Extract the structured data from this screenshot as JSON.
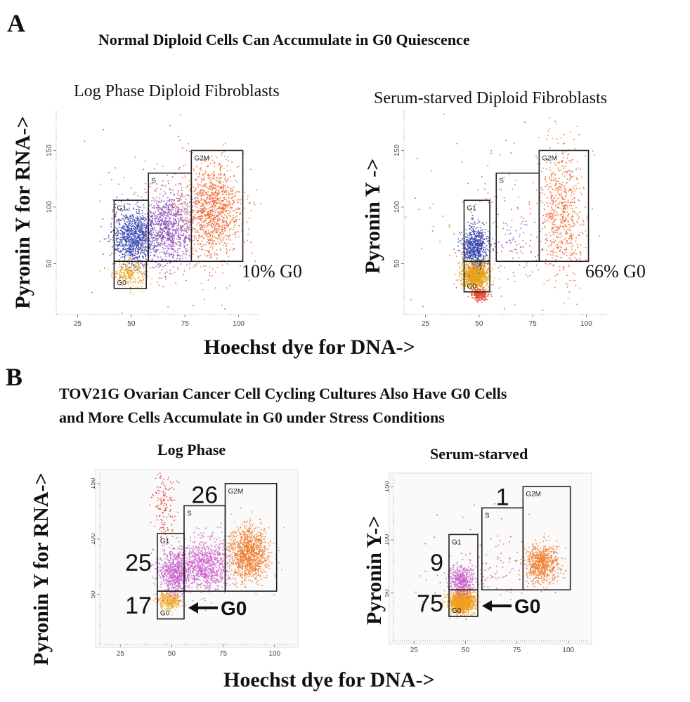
{
  "panel_a": {
    "letter": "A",
    "title": "Normal Diploid Cells Can Accumulate in G0 Quiescence",
    "ylabel_left": "Pyronin Y for RNA->",
    "ylabel_right": "Pyronin Y ->",
    "xlabel": "Hoechst dye for DNA->"
  },
  "panel_b": {
    "letter": "B",
    "title_line1": "TOV21G Ovarian Cancer Cell Cycling Cultures Also Have G0 Cells",
    "title_line2": "and More Cells Accumulate in G0 under Stress Conditions",
    "ylabel_left": "Pyronin Y for RNA->",
    "ylabel_right": "Pyronin Y->",
    "xlabel": "Hoechst dye for DNA->"
  },
  "chart_data": [
    {
      "id": "a-log",
      "type": "scatter",
      "title": "Log Phase Diploid Fibroblasts",
      "xlabel": "Hoechst dye for DNA->",
      "ylabel": "Pyronin Y for RNA->",
      "xticks": [
        "25",
        "50",
        "75",
        "100"
      ],
      "yticks": [
        "50",
        "100",
        "150"
      ],
      "xlim": [
        15,
        110
      ],
      "ylim": [
        5,
        185
      ],
      "gates": [
        {
          "label": "G0",
          "x": [
            42,
            57
          ],
          "y": [
            28,
            52
          ]
        },
        {
          "label": "G1",
          "x": [
            42,
            58
          ],
          "y": [
            52,
            106
          ]
        },
        {
          "label": "S",
          "x": [
            58,
            78
          ],
          "y": [
            52,
            130
          ]
        },
        {
          "label": "G2M",
          "x": [
            78,
            102
          ],
          "y": [
            52,
            150
          ]
        }
      ],
      "annotation": "10% G0",
      "populations": [
        {
          "name": "G0",
          "color": "#e9a21f",
          "count": 260,
          "cx": 49,
          "cy": 42,
          "sx": 4,
          "sy": 6
        },
        {
          "name": "G1",
          "color": "#3245b0",
          "count": 950,
          "cx": 51,
          "cy": 74,
          "sx": 5,
          "sy": 12
        },
        {
          "name": "S",
          "color": "#8a4ec0",
          "count": 900,
          "cx": 67,
          "cy": 82,
          "sx": 6,
          "sy": 16
        },
        {
          "name": "G2M",
          "color": "#f0652a",
          "count": 1100,
          "cx": 88,
          "cy": 98,
          "sx": 7,
          "sy": 20
        },
        {
          "name": "scatter",
          "color": "#e8452a",
          "count": 180,
          "cx": 68,
          "cy": 90,
          "sx": 18,
          "sy": 38
        }
      ]
    },
    {
      "id": "a-starved",
      "type": "scatter",
      "title": "Serum-starved Diploid Fibroblasts",
      "xlabel": "Hoechst dye for DNA->",
      "ylabel": "Pyronin Y ->",
      "xticks": [
        "25",
        "50",
        "75",
        "100"
      ],
      "yticks": [
        "50",
        "100",
        "150"
      ],
      "xlim": [
        15,
        110
      ],
      "ylim": [
        5,
        185
      ],
      "gates": [
        {
          "label": "G0",
          "x": [
            43,
            55
          ],
          "y": [
            25,
            52
          ]
        },
        {
          "label": "G1",
          "x": [
            43,
            55
          ],
          "y": [
            52,
            106
          ]
        },
        {
          "label": "S",
          "x": [
            58,
            78
          ],
          "y": [
            52,
            130
          ]
        },
        {
          "label": "G2M",
          "x": [
            78,
            101
          ],
          "y": [
            52,
            150
          ]
        }
      ],
      "annotation": "66% G0",
      "populations": [
        {
          "name": "G0",
          "color": "#e9a21f",
          "count": 1300,
          "cx": 48,
          "cy": 40,
          "sx": 3,
          "sy": 6
        },
        {
          "name": "G0-low",
          "color": "#e8452a",
          "count": 220,
          "cx": 50,
          "cy": 23,
          "sx": 2,
          "sy": 3
        },
        {
          "name": "G1",
          "color": "#3245b0",
          "count": 650,
          "cx": 48,
          "cy": 66,
          "sx": 3,
          "sy": 9
        },
        {
          "name": "S",
          "color": "#8a4ec0",
          "count": 70,
          "cx": 66,
          "cy": 70,
          "sx": 7,
          "sy": 13
        },
        {
          "name": "G2M",
          "color": "#f0652a",
          "count": 650,
          "cx": 88,
          "cy": 96,
          "sx": 5,
          "sy": 30
        },
        {
          "name": "scatter",
          "color": "#e8452a",
          "count": 160,
          "cx": 58,
          "cy": 75,
          "sx": 20,
          "sy": 40
        }
      ]
    },
    {
      "id": "b-log",
      "type": "scatter",
      "title": "Log Phase",
      "xlabel": "Hoechst dye for DNA->",
      "ylabel": "Pyronin Y for RNA->",
      "xticks": [
        "25",
        "50",
        "75",
        "100"
      ],
      "yticks": [
        "50",
        "100",
        "150"
      ],
      "xlim": [
        15,
        110
      ],
      "ylim": [
        5,
        160
      ],
      "gates": [
        {
          "label": "G0",
          "x": [
            43,
            56
          ],
          "y": [
            28,
            53
          ]
        },
        {
          "label": "G1",
          "x": [
            43,
            56
          ],
          "y": [
            53,
            105
          ]
        },
        {
          "label": "S",
          "x": [
            56,
            76
          ],
          "y": [
            53,
            130
          ]
        },
        {
          "label": "G2M",
          "x": [
            76,
            101
          ],
          "y": [
            53,
            150
          ]
        }
      ],
      "gate_counts": {
        "G0": "17",
        "G1": "25",
        "S": "26"
      },
      "arrow_label": "G0",
      "populations": [
        {
          "name": "G0",
          "color": "#f0a828",
          "count": 320,
          "cx": 49,
          "cy": 45,
          "sx": 3,
          "sy": 4
        },
        {
          "name": "G1",
          "color": "#c65fc8",
          "count": 700,
          "cx": 51,
          "cy": 70,
          "sx": 4,
          "sy": 10
        },
        {
          "name": "S",
          "color": "#cc5fcc",
          "count": 850,
          "cx": 66,
          "cy": 77,
          "sx": 6,
          "sy": 12
        },
        {
          "name": "G2M",
          "color": "#f07a2a",
          "count": 1100,
          "cx": 87,
          "cy": 88,
          "sx": 5,
          "sy": 12
        },
        {
          "name": "top",
          "color": "#e03a30",
          "count": 140,
          "cx": 46,
          "cy": 130,
          "sx": 3,
          "sy": 18
        }
      ]
    },
    {
      "id": "b-starved",
      "type": "scatter",
      "title": "Serum-starved",
      "xlabel": "Hoechst dye for DNA->",
      "ylabel": "Pyronin Y->",
      "xticks": [
        "25",
        "50",
        "75",
        "100"
      ],
      "yticks": [
        "50",
        "100",
        "150"
      ],
      "xlim": [
        15,
        110
      ],
      "ylim": [
        5,
        160
      ],
      "gates": [
        {
          "label": "G0",
          "x": [
            42,
            56
          ],
          "y": [
            28,
            53
          ]
        },
        {
          "label": "G1",
          "x": [
            42,
            56
          ],
          "y": [
            53,
            105
          ]
        },
        {
          "label": "S",
          "x": [
            58,
            78
          ],
          "y": [
            53,
            130
          ]
        },
        {
          "label": "G2M",
          "x": [
            78,
            101
          ],
          "y": [
            53,
            150
          ]
        }
      ],
      "gate_counts": {
        "G0": "75",
        "G1": "9",
        "S": "1"
      },
      "arrow_label": "G0",
      "populations": [
        {
          "name": "G0",
          "color": "#f0a020",
          "count": 1500,
          "cx": 48,
          "cy": 42,
          "sx": 3,
          "sy": 5
        },
        {
          "name": "G1",
          "color": "#c65fc8",
          "count": 420,
          "cx": 48,
          "cy": 62,
          "sx": 3,
          "sy": 7
        },
        {
          "name": "S",
          "color": "#cc5fcc",
          "count": 50,
          "cx": 66,
          "cy": 72,
          "sx": 6,
          "sy": 14
        },
        {
          "name": "G2M",
          "color": "#f07a2a",
          "count": 700,
          "cx": 87,
          "cy": 78,
          "sx": 4,
          "sy": 9
        },
        {
          "name": "scatter",
          "color": "#e03a30",
          "count": 60,
          "cx": 55,
          "cy": 80,
          "sx": 18,
          "sy": 30
        }
      ]
    }
  ]
}
